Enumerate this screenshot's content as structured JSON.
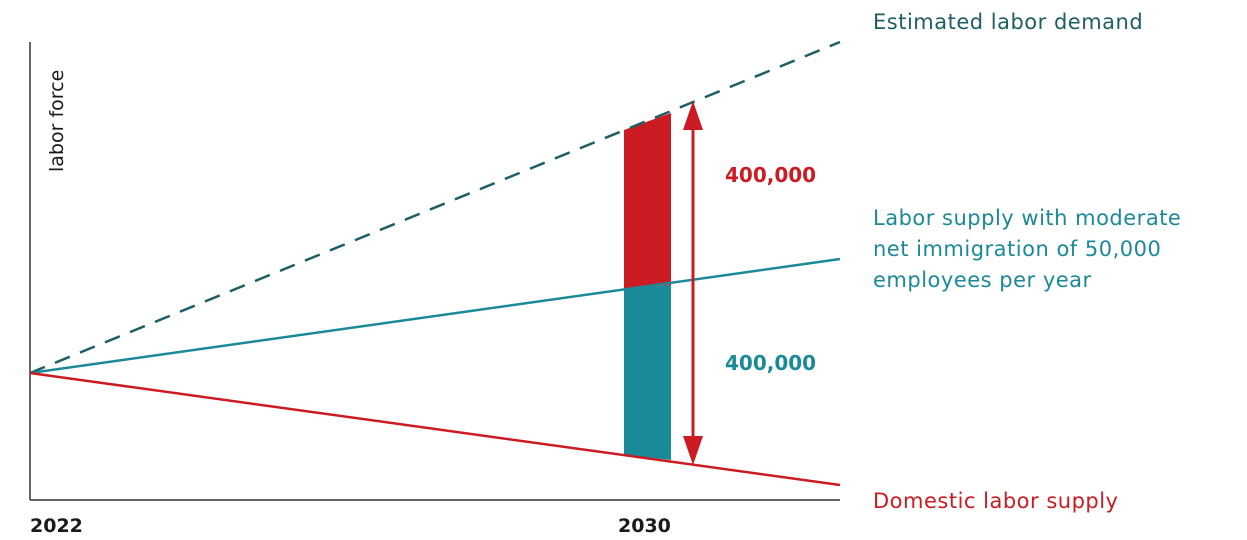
{
  "chart_data": {
    "type": "line",
    "title": "",
    "xlabel": "",
    "ylabel": "labor force",
    "x_ticks": [
      "2022",
      "2030"
    ],
    "grid": false,
    "legend": "labels at right end of each line",
    "series": [
      {
        "name": "Estimated labor demand",
        "style": "dashed",
        "color": "#1f5e63",
        "values": [
          0,
          800000
        ]
      },
      {
        "name": "Labor supply with moderate net immigration of 50,000 employees per year",
        "style": "solid",
        "color": "#1b8a98",
        "values": [
          0,
          400000
        ]
      },
      {
        "name": "Domestic labor supply",
        "style": "solid",
        "color": "#cc1b22",
        "values": [
          0,
          0
        ]
      }
    ],
    "series_label_lines": [
      [
        "Estimated labor demand"
      ],
      [
        "Labor supply with moderate",
        "net immigration of 50,000",
        "employees per year"
      ],
      [
        "Domestic labor supply"
      ]
    ],
    "gaps_at_2030": [
      {
        "label": "400,000",
        "color": "#cc1b22",
        "between": "labor supply with immigration and estimated labor demand"
      },
      {
        "label": "400,000",
        "color": "#1b8a98",
        "between": "domestic labor supply and labor supply with immigration"
      }
    ],
    "colors": {
      "red": "#cc1b22",
      "teal": "#1b8a98",
      "dark_teal": "#1f5e63",
      "axis": "#333333"
    }
  }
}
